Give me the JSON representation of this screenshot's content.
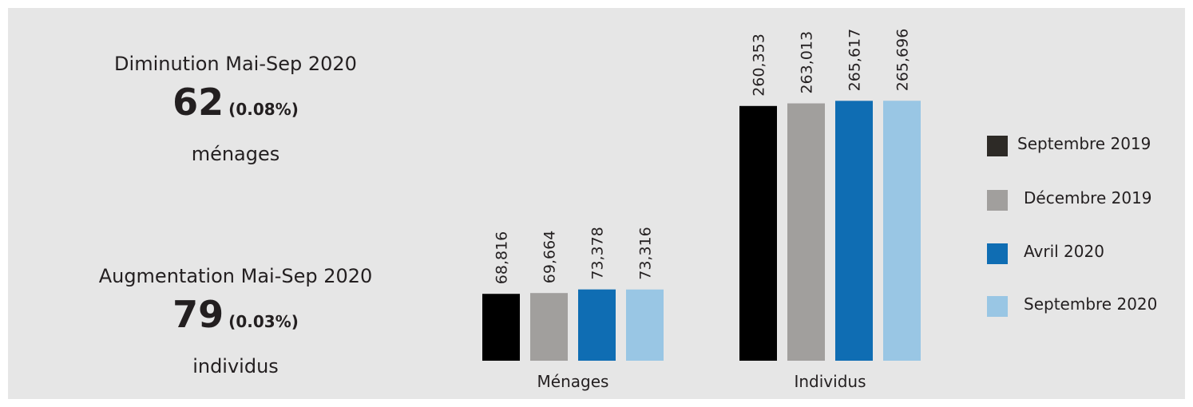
{
  "stats": {
    "decrease": {
      "title": "Diminution Mai-Sep 2020",
      "value": "62",
      "percent": "(0.08%)",
      "unit": "ménages"
    },
    "increase": {
      "title": "Augmentation Mai-Sep 2020",
      "value": "79",
      "percent": "(0.03%)",
      "unit": "individus"
    }
  },
  "chart_data": {
    "type": "bar",
    "groups": [
      {
        "name": "Ménages",
        "values": [
          68816,
          69664,
          73378,
          73316
        ],
        "labels": [
          "68,816",
          "69,664",
          "73,378",
          "73,316"
        ]
      },
      {
        "name": "Individus",
        "values": [
          260353,
          263013,
          265617,
          265696
        ],
        "labels": [
          "260,353",
          "263,013",
          "265,617",
          "265,696"
        ]
      }
    ],
    "series": [
      {
        "name": "Septembre 2019",
        "color": "#000000",
        "legend_color": "#2d2a26"
      },
      {
        "name": "Décembre 2019",
        "color": "#a19f9d"
      },
      {
        "name": "Avril 2020",
        "color": "#0f6db3"
      },
      {
        "name": "Septembre 2020",
        "color": "#99c6e4"
      }
    ],
    "legend_position": "right",
    "grid": false
  }
}
